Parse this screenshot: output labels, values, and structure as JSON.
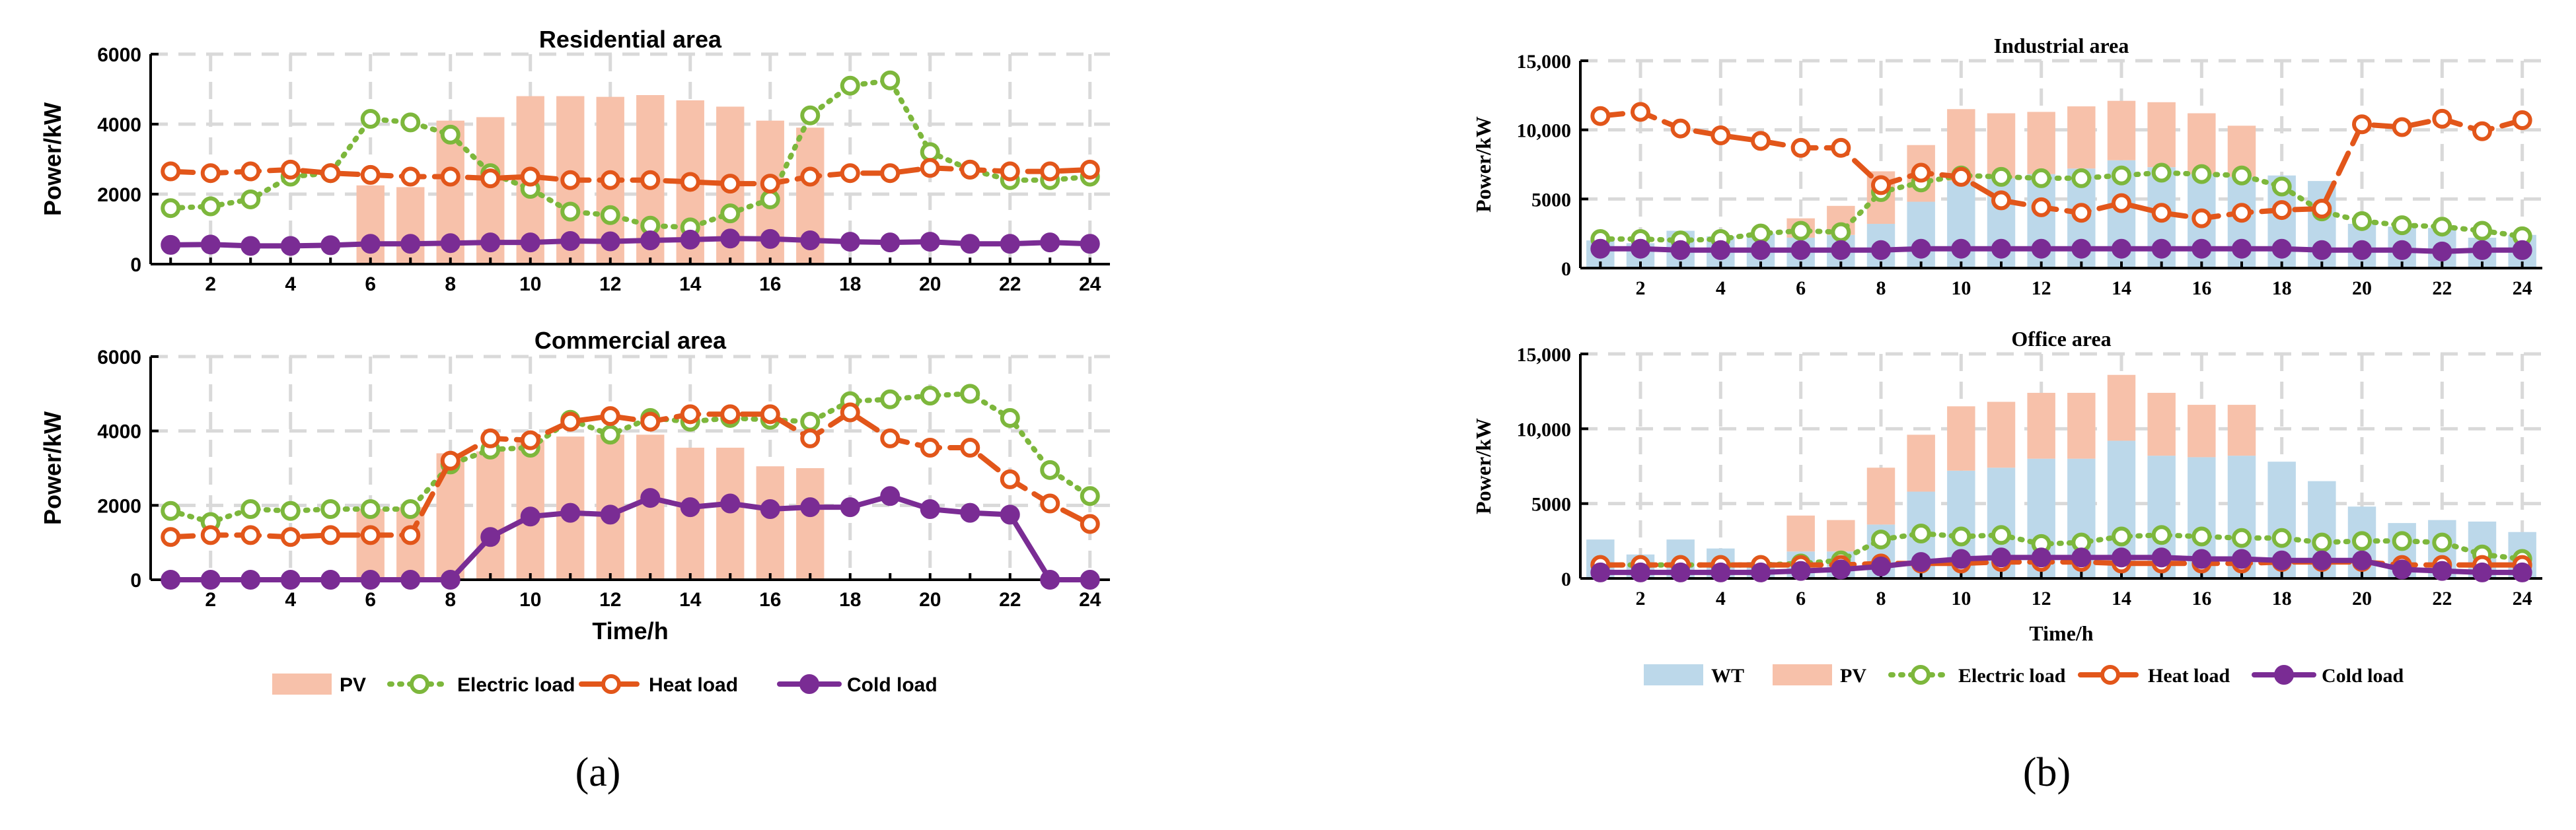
{
  "colors": {
    "pv": "#F7C1AA",
    "wt": "#BCD8EA",
    "electric": "#7DB73C",
    "heat": "#E2561A",
    "cold": "#7A2C94",
    "grid": "#D9D9D9"
  },
  "panel_labels": [
    "(a)",
    "(b)"
  ],
  "chart_data": [
    {
      "id": "residential",
      "type": "bar+line",
      "title": "Residential area",
      "ylabel": "Power/kW",
      "xlabel": "",
      "ylim": [
        0,
        6000
      ],
      "yticks": [
        0,
        2000,
        4000,
        6000
      ],
      "ytick_labels": [
        "0",
        "2000",
        "4000",
        "6000"
      ],
      "x": [
        1,
        2,
        3,
        4,
        5,
        6,
        7,
        8,
        9,
        10,
        11,
        12,
        13,
        14,
        15,
        16,
        17,
        18,
        19,
        20,
        21,
        22,
        23,
        24
      ],
      "xtick_labels": [
        "2",
        "4",
        "6",
        "8",
        "10",
        "12",
        "14",
        "16",
        "18",
        "20",
        "22",
        "24"
      ],
      "bars": [
        {
          "name": "PV",
          "values": [
            0,
            0,
            0,
            0,
            0,
            2250,
            2200,
            4100,
            4200,
            4800,
            4800,
            4780,
            4830,
            4680,
            4500,
            4100,
            3900,
            0,
            0,
            0,
            0,
            0,
            0,
            0
          ]
        }
      ],
      "series": [
        {
          "name": "Electric load",
          "values": [
            1600,
            1650,
            1850,
            2500,
            2600,
            4150,
            4050,
            3700,
            2600,
            2150,
            1500,
            1400,
            1100,
            1050,
            1450,
            1850,
            4250,
            5100,
            5250,
            3200,
            2700,
            2400,
            2400,
            2500
          ]
        },
        {
          "name": "Heat load",
          "values": [
            2650,
            2600,
            2650,
            2700,
            2600,
            2550,
            2500,
            2500,
            2450,
            2500,
            2400,
            2400,
            2400,
            2350,
            2300,
            2300,
            2500,
            2600,
            2600,
            2750,
            2700,
            2650,
            2650,
            2700
          ]
        },
        {
          "name": "Cold load",
          "values": [
            550,
            560,
            520,
            520,
            540,
            580,
            580,
            600,
            620,
            620,
            660,
            650,
            680,
            700,
            730,
            720,
            680,
            640,
            620,
            640,
            580,
            580,
            620,
            580
          ]
        }
      ]
    },
    {
      "id": "commercial",
      "type": "bar+line",
      "title": "Commercial area",
      "ylabel": "Power/kW",
      "xlabel": "Time/h",
      "ylim": [
        0,
        6000
      ],
      "yticks": [
        0,
        2000,
        4000,
        6000
      ],
      "ytick_labels": [
        "0",
        "2000",
        "4000",
        "6000"
      ],
      "x": [
        1,
        2,
        3,
        4,
        5,
        6,
        7,
        8,
        9,
        10,
        11,
        12,
        13,
        14,
        15,
        16,
        17,
        18,
        19,
        20,
        21,
        22,
        23,
        24
      ],
      "xtick_labels": [
        "2",
        "4",
        "6",
        "8",
        "10",
        "12",
        "14",
        "16",
        "18",
        "20",
        "22",
        "24"
      ],
      "bars": [
        {
          "name": "PV",
          "values": [
            0,
            0,
            0,
            0,
            0,
            1900,
            1950,
            3400,
            3450,
            3750,
            3850,
            3900,
            3900,
            3550,
            3550,
            3050,
            3000,
            0,
            0,
            0,
            0,
            0,
            0,
            0
          ]
        }
      ],
      "series": [
        {
          "name": "Electric load",
          "values": [
            1850,
            1550,
            1900,
            1850,
            1900,
            1900,
            1900,
            3100,
            3500,
            3550,
            4300,
            3900,
            4350,
            4250,
            4350,
            4300,
            4250,
            4800,
            4850,
            4950,
            5000,
            4350,
            2950,
            2250
          ]
        },
        {
          "name": "Heat load",
          "values": [
            1150,
            1200,
            1200,
            1150,
            1200,
            1200,
            1200,
            3200,
            3800,
            3750,
            4250,
            4400,
            4250,
            4450,
            4450,
            4450,
            3800,
            4500,
            3800,
            3550,
            3550,
            2700,
            2050,
            1500
          ]
        },
        {
          "name": "Cold load",
          "values": [
            0,
            0,
            0,
            0,
            0,
            0,
            0,
            0,
            1150,
            1700,
            1800,
            1750,
            2200,
            1950,
            2050,
            1900,
            1950,
            1950,
            2250,
            1900,
            1800,
            1750,
            0,
            0
          ]
        }
      ]
    },
    {
      "id": "industrial",
      "type": "bar+line",
      "title": "Industrial area",
      "ylabel": "Power/kW",
      "xlabel": "",
      "ylim": [
        0,
        15000
      ],
      "yticks": [
        0,
        5000,
        10000,
        15000
      ],
      "ytick_labels": [
        "0",
        "5000",
        "10,000",
        "15,000"
      ],
      "x": [
        1,
        2,
        3,
        4,
        5,
        6,
        7,
        8,
        9,
        10,
        11,
        12,
        13,
        14,
        15,
        16,
        17,
        18,
        19,
        20,
        21,
        22,
        23,
        24
      ],
      "xtick_labels": [
        "2",
        "4",
        "6",
        "8",
        "10",
        "12",
        "14",
        "16",
        "18",
        "20",
        "22",
        "24"
      ],
      "bars": [
        {
          "name": "WT",
          "values": [
            2000,
            1800,
            2700,
            2300,
            2500,
            2200,
            2400,
            3200,
            4800,
            6300,
            6500,
            6800,
            7200,
            7800,
            7300,
            6800,
            6600,
            6700,
            6300,
            3200,
            3000,
            2900,
            2200,
            2400
          ]
        },
        {
          "name": "PV",
          "values": [
            0,
            0,
            0,
            0,
            0,
            1400,
            2100,
            3800,
            4100,
            5200,
            4700,
            4500,
            4500,
            4300,
            4700,
            4400,
            3700,
            0,
            0,
            0,
            0,
            0,
            0,
            0
          ]
        }
      ],
      "series": [
        {
          "name": "Electric load",
          "values": [
            2100,
            2100,
            2000,
            2100,
            2500,
            2700,
            2600,
            5500,
            6200,
            6700,
            6600,
            6500,
            6500,
            6700,
            6900,
            6800,
            6700,
            5900,
            4100,
            3400,
            3100,
            3000,
            2700,
            2300
          ]
        },
        {
          "name": "Heat load",
          "values": [
            11000,
            11300,
            10100,
            9600,
            9200,
            8700,
            8700,
            6000,
            6900,
            6600,
            4900,
            4400,
            4000,
            4700,
            4000,
            3600,
            4000,
            4200,
            4300,
            10400,
            10200,
            10800,
            9900,
            10700
          ]
        },
        {
          "name": "Cold load",
          "values": [
            1400,
            1400,
            1300,
            1300,
            1300,
            1300,
            1300,
            1300,
            1400,
            1400,
            1400,
            1400,
            1400,
            1400,
            1400,
            1400,
            1400,
            1400,
            1300,
            1300,
            1300,
            1200,
            1300,
            1300
          ]
        }
      ]
    },
    {
      "id": "office",
      "type": "bar+line",
      "title": "Office area",
      "ylabel": "Power/kW",
      "xlabel": "Time/h",
      "ylim": [
        0,
        15000
      ],
      "yticks": [
        0,
        5000,
        10000,
        15000
      ],
      "ytick_labels": [
        "0",
        "5000",
        "10,000",
        "15,000"
      ],
      "x": [
        1,
        2,
        3,
        4,
        5,
        6,
        7,
        8,
        9,
        10,
        11,
        12,
        13,
        14,
        15,
        16,
        17,
        18,
        19,
        20,
        21,
        22,
        23,
        24
      ],
      "xtick_labels": [
        "2",
        "4",
        "6",
        "8",
        "10",
        "12",
        "14",
        "16",
        "18",
        "20",
        "22",
        "24"
      ],
      "bars": [
        {
          "name": "WT",
          "values": [
            2600,
            1600,
            2600,
            2000,
            1100,
            1800,
            1800,
            3600,
            5800,
            7200,
            7400,
            8000,
            8000,
            9200,
            8200,
            8100,
            8200,
            7800,
            6500,
            4800,
            3700,
            3900,
            3800,
            3100
          ]
        },
        {
          "name": "PV",
          "values": [
            0,
            0,
            0,
            0,
            0,
            2400,
            2100,
            3800,
            3800,
            4300,
            4400,
            4400,
            4400,
            4400,
            4200,
            3500,
            3400,
            0,
            0,
            0,
            0,
            0,
            0,
            0
          ]
        }
      ],
      "series": [
        {
          "name": "Electric load",
          "values": [
            900,
            900,
            900,
            900,
            900,
            1000,
            1200,
            2600,
            3000,
            2800,
            2900,
            2300,
            2400,
            2800,
            2900,
            2800,
            2700,
            2700,
            2400,
            2500,
            2500,
            2400,
            1600,
            1300
          ]
        },
        {
          "name": "Heat load",
          "values": [
            900,
            900,
            900,
            900,
            900,
            900,
            900,
            1000,
            1000,
            1000,
            1100,
            1100,
            1100,
            1000,
            1000,
            1000,
            1000,
            1100,
            1100,
            1100,
            900,
            900,
            900,
            900
          ]
        },
        {
          "name": "Cold load",
          "values": [
            400,
            400,
            400,
            400,
            400,
            500,
            600,
            800,
            1100,
            1300,
            1400,
            1400,
            1400,
            1400,
            1400,
            1300,
            1300,
            1200,
            1200,
            1200,
            600,
            500,
            400,
            400
          ]
        }
      ]
    }
  ],
  "legends": [
    {
      "id": "legend-a",
      "items": [
        "PV",
        "Electric load",
        "Heat load",
        "Cold load"
      ]
    },
    {
      "id": "legend-b",
      "items": [
        "WT",
        "PV",
        "Electric load",
        "Heat load",
        "Cold load"
      ]
    }
  ]
}
